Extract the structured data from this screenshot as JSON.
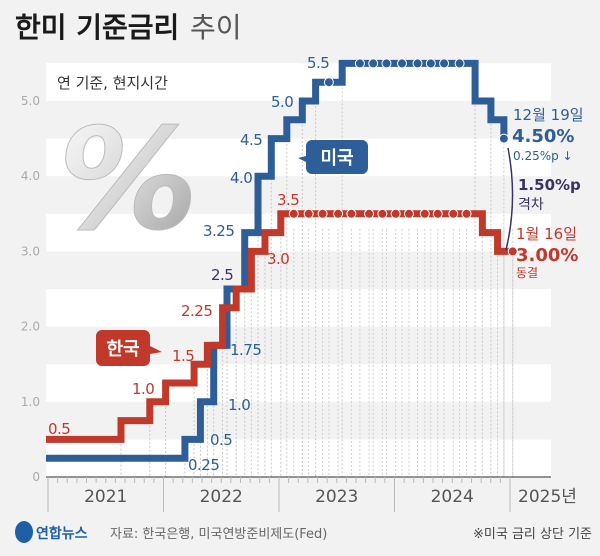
{
  "header": {
    "title_bold": "한미 기준금리",
    "title_light": "추이",
    "subtitle": "연 기준, 현지시간"
  },
  "decor": {
    "percent_glyph": "%"
  },
  "colors": {
    "us": "#2d5e97",
    "korea": "#c0392b",
    "gap": "#3b3164",
    "background": "#f2f2f2"
  },
  "chart_data": {
    "type": "line",
    "step": true,
    "x_ticks": [
      "2021",
      "2022",
      "2023",
      "2024",
      "2025년"
    ],
    "xlim": [
      "2021-01-01",
      "2025-01-31"
    ],
    "ylim": [
      0,
      5.5
    ],
    "y_ticks": [
      "0",
      "1.0",
      "2.0",
      "3.0",
      "4.0",
      "5.0"
    ],
    "grid": "horizontal bands",
    "series": [
      {
        "name": "미국",
        "key": "us",
        "steps": [
          [
            "2021-01-01",
            0.25
          ],
          [
            "2022-03-16",
            0.5
          ],
          [
            "2022-05-04",
            1.0
          ],
          [
            "2022-06-15",
            1.75
          ],
          [
            "2022-07-27",
            2.5
          ],
          [
            "2022-09-21",
            3.25
          ],
          [
            "2022-11-02",
            4.0
          ],
          [
            "2022-12-14",
            4.5
          ],
          [
            "2023-02-01",
            4.75
          ],
          [
            "2023-03-22",
            5.0
          ],
          [
            "2023-05-03",
            5.25
          ],
          [
            "2023-07-26",
            5.5
          ],
          [
            "2024-09-18",
            5.0
          ],
          [
            "2024-11-07",
            4.75
          ],
          [
            "2024-12-18",
            4.5
          ]
        ],
        "hold_points": [
          "2023-06-14",
          "2023-09-20",
          "2023-11-01",
          "2023-12-13",
          "2024-01-31",
          "2024-03-20",
          "2024-05-01",
          "2024-06-12",
          "2024-07-31",
          "2024-12-18"
        ],
        "labels": [
          "0.25",
          "0.5",
          "1.0",
          "1.75",
          "2.5",
          "3.25",
          "4.0",
          "4.5",
          "5.0",
          "5.5"
        ]
      },
      {
        "name": "한국",
        "key": "korea",
        "steps": [
          [
            "2021-01-01",
            0.5
          ],
          [
            "2021-08-26",
            0.75
          ],
          [
            "2021-11-25",
            1.0
          ],
          [
            "2022-01-14",
            1.25
          ],
          [
            "2022-04-14",
            1.5
          ],
          [
            "2022-05-26",
            1.75
          ],
          [
            "2022-07-13",
            2.25
          ],
          [
            "2022-08-25",
            2.5
          ],
          [
            "2022-10-12",
            3.0
          ],
          [
            "2022-11-24",
            3.25
          ],
          [
            "2023-01-13",
            3.5
          ],
          [
            "2024-10-11",
            3.25
          ],
          [
            "2024-11-28",
            3.0
          ],
          [
            "2025-01-16",
            3.0
          ]
        ],
        "hold_points": [
          "2023-02-23",
          "2023-04-11",
          "2023-05-25",
          "2023-07-13",
          "2023-08-24",
          "2023-10-19",
          "2023-11-30",
          "2024-01-11",
          "2024-02-22",
          "2024-04-12",
          "2024-05-23",
          "2024-07-11",
          "2024-08-22",
          "2025-01-16"
        ],
        "labels": [
          "0.5",
          "1.0",
          "1.5",
          "2.25",
          "3.0",
          "3.5"
        ]
      }
    ],
    "annotations": {
      "us_date": "12월 19일",
      "us_value": "4.50%",
      "us_change": "0.25%p ↓",
      "gap_value": "1.50%p",
      "gap_label": "격차",
      "korea_date": "1월 16일",
      "korea_value": "3.00%",
      "korea_change": "동결"
    }
  },
  "footer": {
    "logo": "연합뉴스",
    "source": "자료: 한국은행, 미국연방준비제도(Fed)",
    "note": "※미국 금리 상단 기준"
  }
}
